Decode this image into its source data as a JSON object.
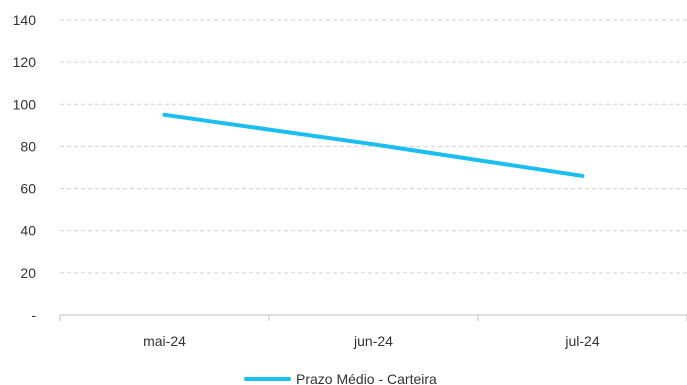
{
  "chart_data": {
    "type": "line",
    "categories": [
      "mai-24",
      "jun-24",
      "jul-24"
    ],
    "series": [
      {
        "name": "Prazo Médio - Carteira",
        "values": [
          95,
          81,
          66
        ],
        "color": "#1ABFF0"
      }
    ],
    "yticks": [
      "-",
      "20",
      "40",
      "60",
      "80",
      "100",
      "120",
      "140"
    ],
    "ylim": [
      0,
      140
    ],
    "grid": true,
    "grid_style": "dashed",
    "legend_position": "bottom-center"
  }
}
